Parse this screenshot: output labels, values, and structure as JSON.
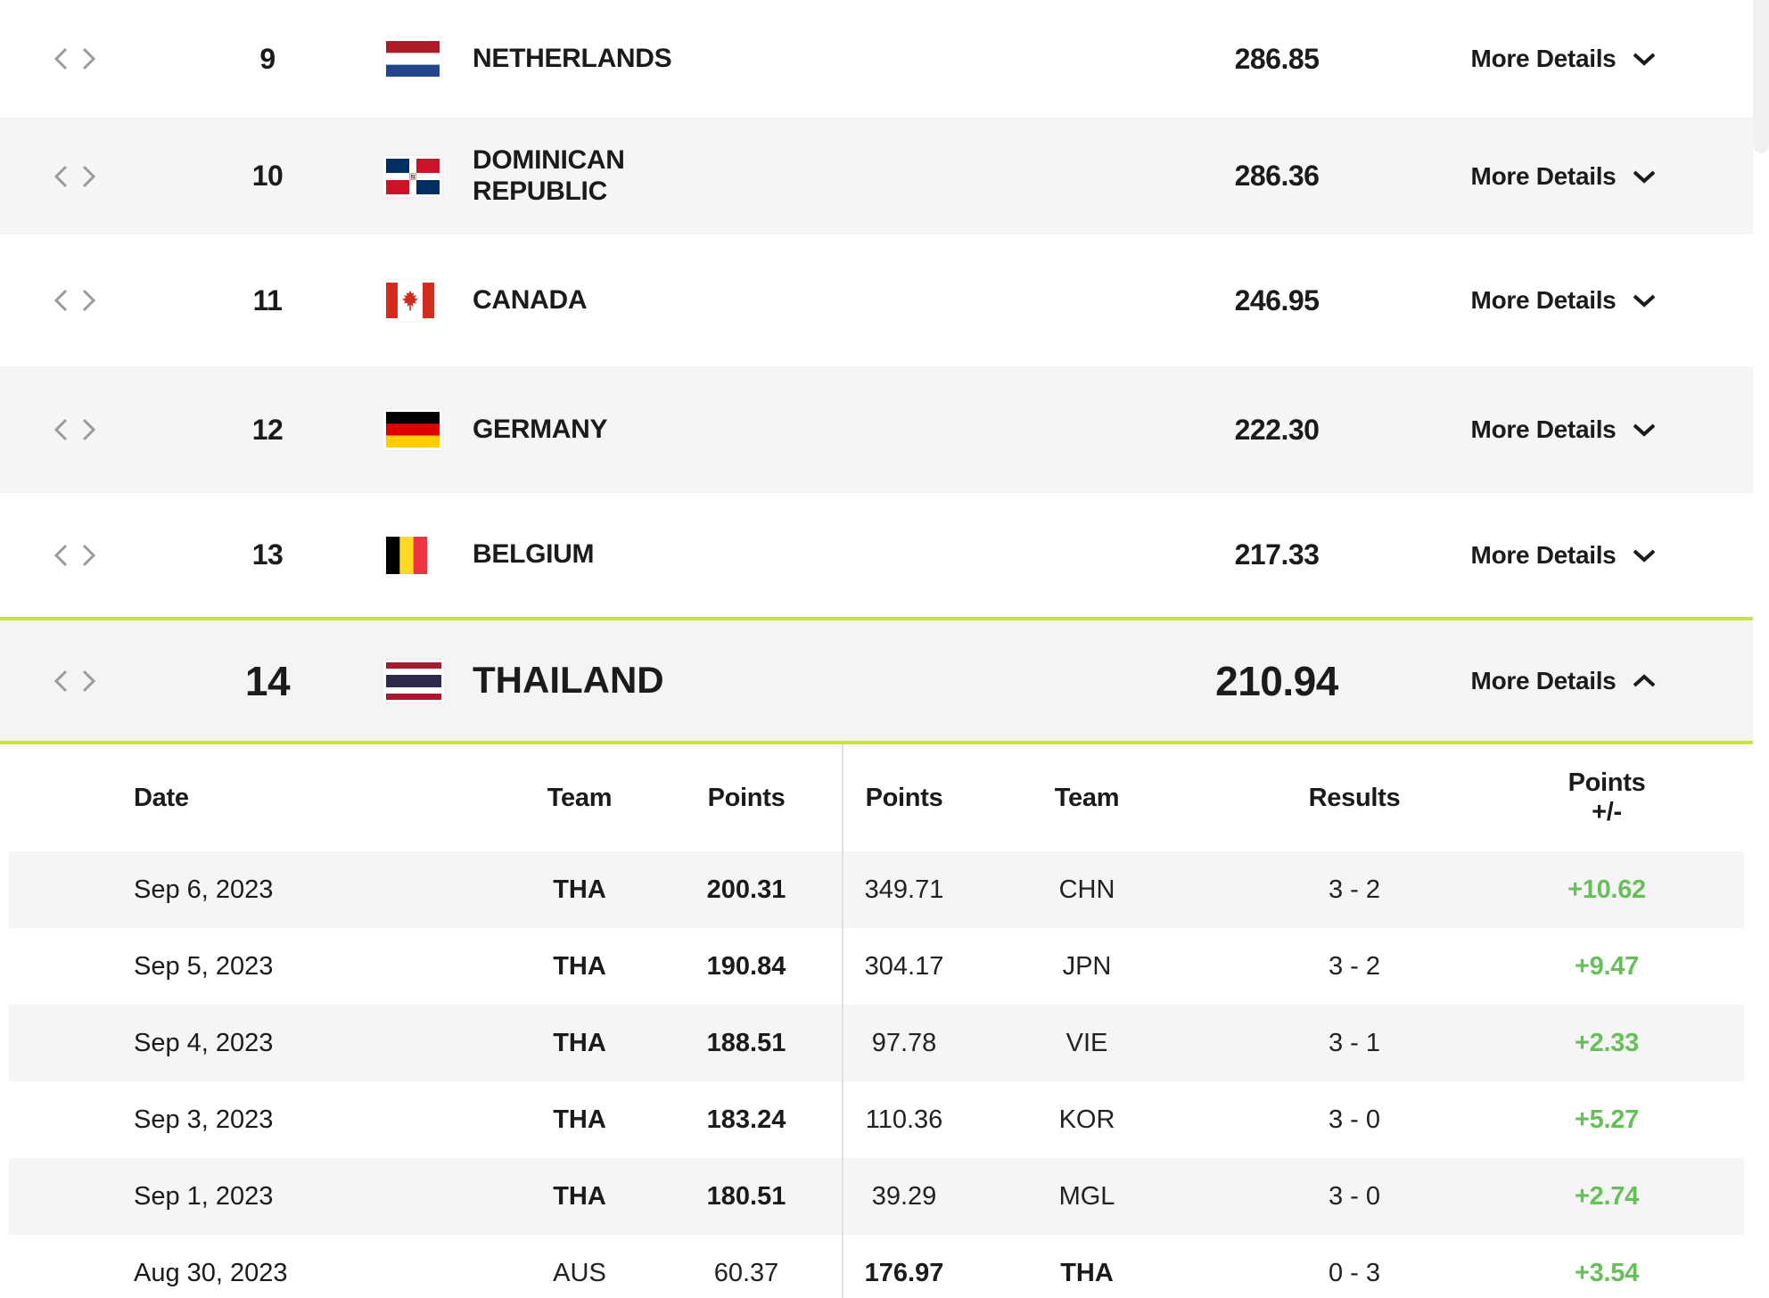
{
  "colors": {
    "accent_lime": "#cbe72b",
    "positive_green": "#67bf5a",
    "row_stripe": "#f5f5f5"
  },
  "more_details_label": "More Details",
  "rankings": [
    {
      "rank": "9",
      "country": "NETHERLANDS",
      "points": "286.85",
      "flag": "nl",
      "expanded": false
    },
    {
      "rank": "10",
      "country": "DOMINICAN REPUBLIC",
      "points": "286.36",
      "flag": "do",
      "expanded": false
    },
    {
      "rank": "11",
      "country": "CANADA",
      "points": "246.95",
      "flag": "ca",
      "expanded": false
    },
    {
      "rank": "12",
      "country": "GERMANY",
      "points": "222.30",
      "flag": "de",
      "expanded": false
    },
    {
      "rank": "13",
      "country": "BELGIUM",
      "points": "217.33",
      "flag": "be",
      "expanded": false
    },
    {
      "rank": "14",
      "country": "THAILAND",
      "points": "210.94",
      "flag": "th",
      "expanded": true
    }
  ],
  "match_details": {
    "headers": {
      "date": "Date",
      "team_left": "Team",
      "points_left": "Points",
      "points_right": "Points",
      "team_right": "Team",
      "results": "Results",
      "points_diff_line1": "Points",
      "points_diff_line2": "+/-"
    },
    "rows": [
      {
        "date": "Sep 6, 2023",
        "team1": "THA",
        "points1": "200.31",
        "points2": "349.71",
        "team2": "CHN",
        "result": "3 - 2",
        "diff": "+10.62",
        "thai_side": "left"
      },
      {
        "date": "Sep 5, 2023",
        "team1": "THA",
        "points1": "190.84",
        "points2": "304.17",
        "team2": "JPN",
        "result": "3 - 2",
        "diff": "+9.47",
        "thai_side": "left"
      },
      {
        "date": "Sep 4, 2023",
        "team1": "THA",
        "points1": "188.51",
        "points2": "97.78",
        "team2": "VIE",
        "result": "3 - 1",
        "diff": "+2.33",
        "thai_side": "left"
      },
      {
        "date": "Sep 3, 2023",
        "team1": "THA",
        "points1": "183.24",
        "points2": "110.36",
        "team2": "KOR",
        "result": "3 - 0",
        "diff": "+5.27",
        "thai_side": "left"
      },
      {
        "date": "Sep 1, 2023",
        "team1": "THA",
        "points1": "180.51",
        "points2": "39.29",
        "team2": "MGL",
        "result": "3 - 0",
        "diff": "+2.74",
        "thai_side": "left"
      },
      {
        "date": "Aug 30, 2023",
        "team1": "AUS",
        "points1": "60.37",
        "points2": "176.97",
        "team2": "THA",
        "result": "0 - 3",
        "diff": "+3.54",
        "thai_side": "right"
      }
    ]
  }
}
